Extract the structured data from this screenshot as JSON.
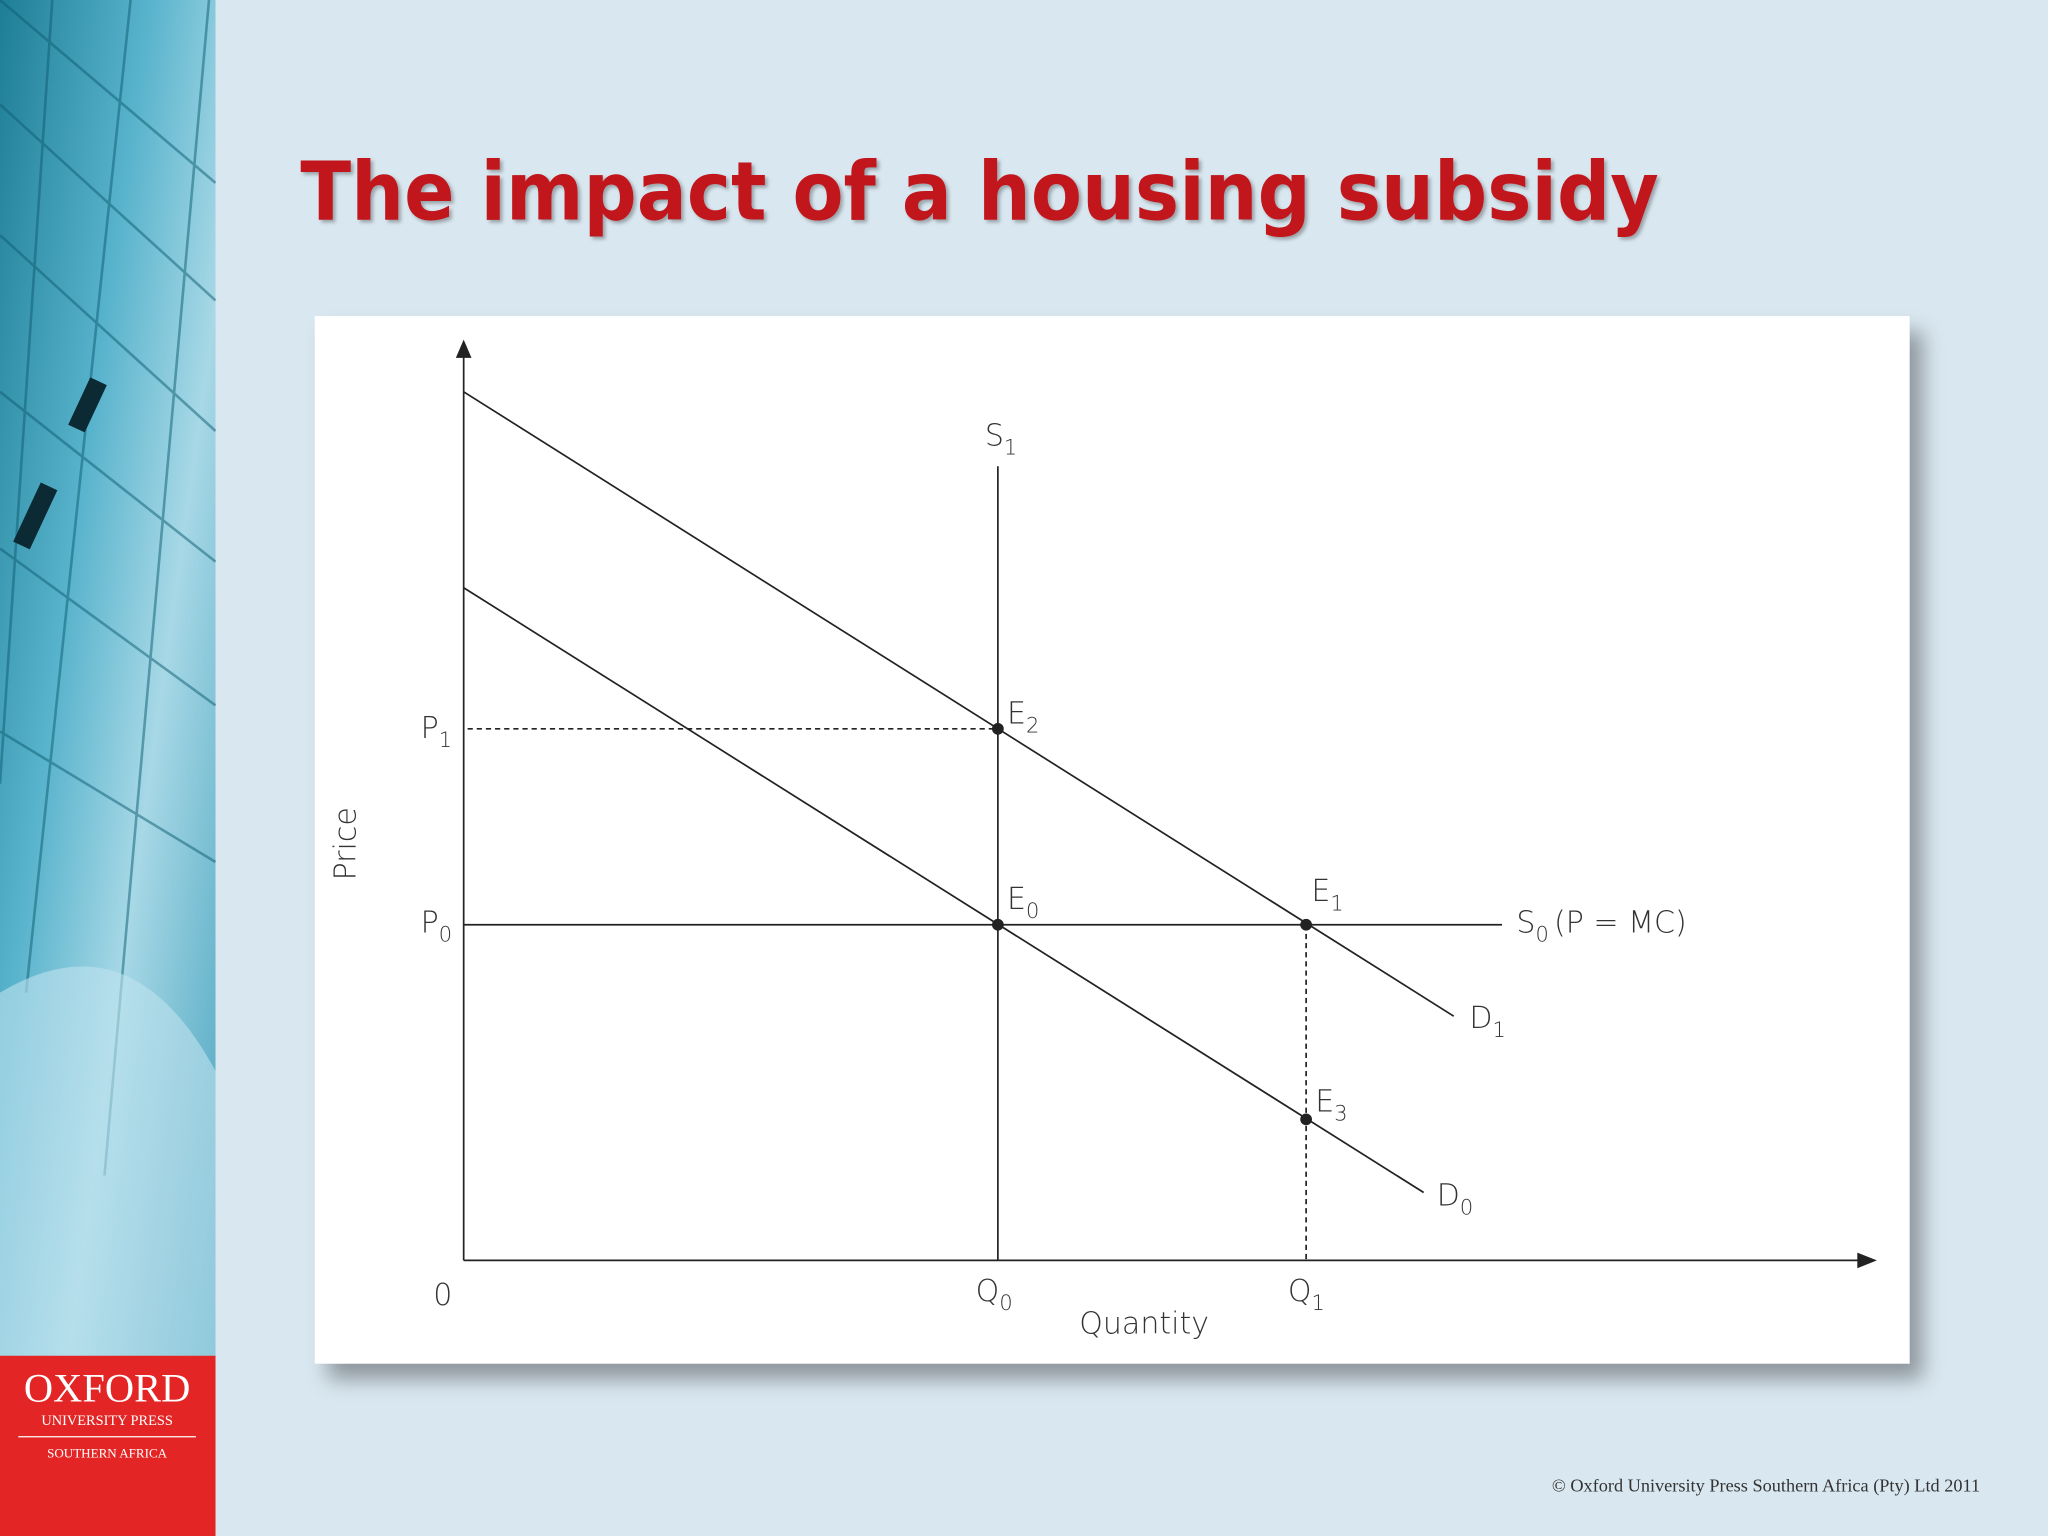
{
  "title": "The impact of a housing subsidy",
  "diagram": {
    "y_axis_label": "Price",
    "x_axis_label": "Quantity",
    "origin_label": "0",
    "labels": {
      "S1": {
        "base": "S",
        "sub": "1"
      },
      "E2": {
        "base": "E",
        "sub": "2"
      },
      "P1": {
        "base": "P",
        "sub": "1"
      },
      "E0": {
        "base": "E",
        "sub": "0"
      },
      "E1": {
        "base": "E",
        "sub": "1"
      },
      "P0": {
        "base": "P",
        "sub": "0"
      },
      "S0": {
        "base": "S",
        "sub": "0",
        "suffix": "(P = MC)"
      },
      "D1": {
        "base": "D",
        "sub": "1"
      },
      "E3": {
        "base": "E",
        "sub": "3"
      },
      "D0": {
        "base": "D",
        "sub": "0"
      },
      "Q0": {
        "base": "Q",
        "sub": "0"
      },
      "Q1": {
        "base": "Q",
        "sub": "1"
      }
    }
  },
  "logo": {
    "name": "OXFORD",
    "line1": "UNIVERSITY PRESS",
    "line2": "SOUTHERN AFRICA"
  },
  "footer": "© Oxford University Press Southern Africa (Pty) Ltd 2011"
}
